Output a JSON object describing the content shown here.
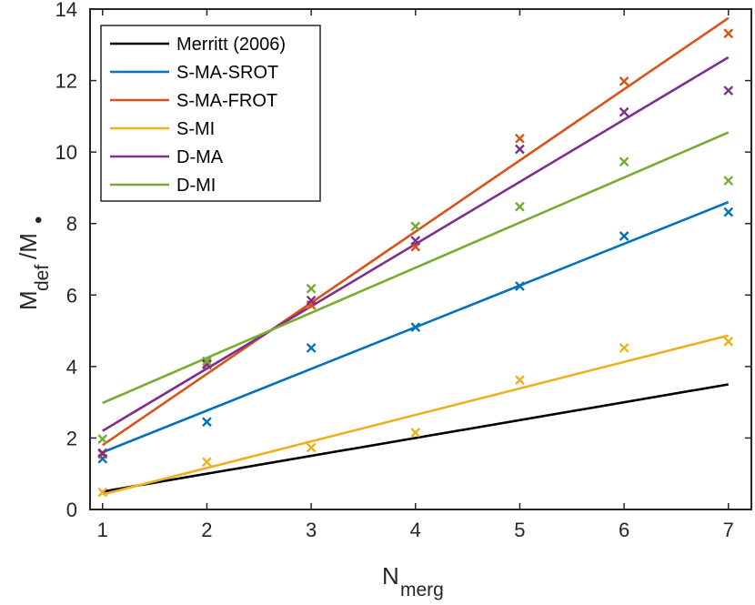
{
  "chart_data": {
    "type": "scatter",
    "title": "",
    "xlabel": {
      "main": "N",
      "sub": "merg"
    },
    "ylabel": {
      "main": "M",
      "sub": "def",
      "mid": "/M",
      "sub2": "•"
    },
    "xlim": [
      0.88,
      7.22
    ],
    "ylim": [
      0,
      14
    ],
    "xticks": [
      1,
      2,
      3,
      4,
      5,
      6,
      7
    ],
    "yticks": [
      0,
      2,
      4,
      6,
      8,
      10,
      12,
      14
    ],
    "grid": false,
    "legend_position": "top-left",
    "series": [
      {
        "name": "Merritt (2006)",
        "color": "#000000",
        "points": [],
        "fit": [
          [
            1,
            0.5
          ],
          [
            7,
            3.5
          ]
        ]
      },
      {
        "name": "S-MA-SROT",
        "color": "#0072BD",
        "points": [
          [
            1,
            1.42
          ],
          [
            2,
            2.45
          ],
          [
            3,
            4.52
          ],
          [
            4,
            5.1
          ],
          [
            5,
            6.25
          ],
          [
            6,
            7.65
          ],
          [
            7,
            8.32
          ]
        ],
        "fit": [
          [
            1,
            1.6
          ],
          [
            7,
            8.6
          ]
        ]
      },
      {
        "name": "S-MA-FROT",
        "color": "#D95319",
        "points": [
          [
            1,
            1.55
          ],
          [
            2,
            4.05
          ],
          [
            3,
            5.72
          ],
          [
            4,
            7.35
          ],
          [
            5,
            10.38
          ],
          [
            6,
            11.98
          ],
          [
            7,
            13.32
          ]
        ],
        "fit": [
          [
            1,
            1.8
          ],
          [
            7,
            13.75
          ]
        ]
      },
      {
        "name": "S-MI",
        "color": "#EDB120",
        "points": [
          [
            1,
            0.48
          ],
          [
            2,
            1.33
          ],
          [
            3,
            1.73
          ],
          [
            4,
            2.15
          ],
          [
            5,
            3.62
          ],
          [
            6,
            4.52
          ],
          [
            7,
            4.7
          ]
        ],
        "fit": [
          [
            1,
            0.42
          ],
          [
            7,
            4.87
          ]
        ]
      },
      {
        "name": "D-MA",
        "color": "#7E2F8E",
        "points": [
          [
            1,
            1.58
          ],
          [
            2,
            4.07
          ],
          [
            3,
            5.85
          ],
          [
            4,
            7.52
          ],
          [
            5,
            10.08
          ],
          [
            6,
            11.12
          ],
          [
            7,
            11.72
          ]
        ],
        "fit": [
          [
            1,
            2.2
          ],
          [
            7,
            12.65
          ]
        ]
      },
      {
        "name": "D-MI",
        "color": "#77AC30",
        "points": [
          [
            1,
            1.97
          ],
          [
            2,
            4.15
          ],
          [
            3,
            6.18
          ],
          [
            4,
            7.92
          ],
          [
            5,
            8.47
          ],
          [
            6,
            9.73
          ],
          [
            7,
            9.2
          ]
        ],
        "fit": [
          [
            1,
            2.98
          ],
          [
            7,
            10.55
          ]
        ]
      }
    ]
  }
}
